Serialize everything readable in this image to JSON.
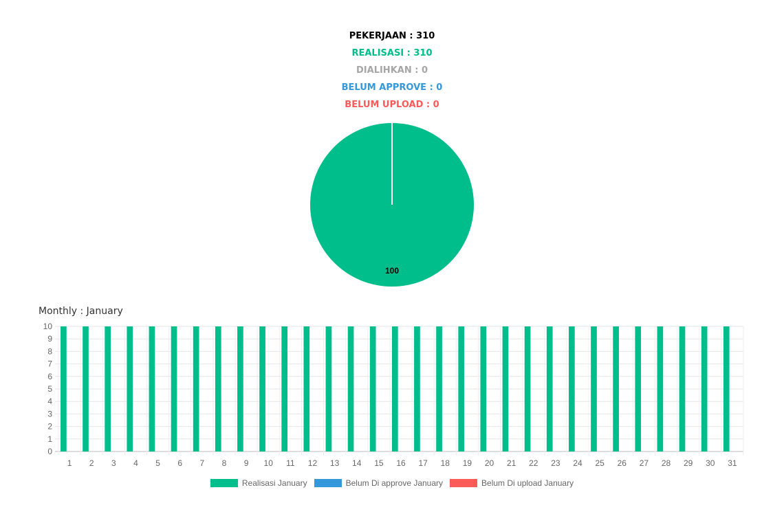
{
  "summary": {
    "pekerjaan": "PEKERJAAN : 310",
    "realisasi": "REALISASI : 310",
    "dialihkan": "DIALIHKAN : 0",
    "belum_approve": "BELUM APPROVE : 0",
    "belum_upload": "BELUM UPLOAD : 0"
  },
  "colors": {
    "black": "#000000",
    "green": "#00BD8C",
    "gray": "#A6A6A6",
    "blue": "#3498DB",
    "red": "#FF5A5A"
  },
  "monthly_title": "Monthly : January",
  "chart_data": [
    {
      "type": "pie",
      "slices": [
        {
          "name": "Realisasi",
          "value": 100,
          "label": "100",
          "color": "#00BD8C"
        },
        {
          "name": "Dialihkan",
          "value": 0,
          "color": "#A6A6A6"
        },
        {
          "name": "Belum approve",
          "value": 0,
          "color": "#3498DB"
        },
        {
          "name": "Belum upload",
          "value": 0,
          "color": "#FF5A5A"
        }
      ]
    },
    {
      "type": "bar",
      "categories": [
        "1",
        "2",
        "3",
        "4",
        "5",
        "6",
        "7",
        "8",
        "9",
        "10",
        "11",
        "12",
        "13",
        "14",
        "15",
        "16",
        "17",
        "18",
        "19",
        "20",
        "21",
        "22",
        "23",
        "24",
        "25",
        "26",
        "27",
        "28",
        "29",
        "30",
        "31"
      ],
      "series": [
        {
          "name": "Realisasi January",
          "color": "#00BD8C",
          "values": [
            10,
            10,
            10,
            10,
            10,
            10,
            10,
            10,
            10,
            10,
            10,
            10,
            10,
            10,
            10,
            10,
            10,
            10,
            10,
            10,
            10,
            10,
            10,
            10,
            10,
            10,
            10,
            10,
            10,
            10,
            10
          ]
        },
        {
          "name": "Belum Di approve January",
          "color": "#3498DB",
          "values": [
            0,
            0,
            0,
            0,
            0,
            0,
            0,
            0,
            0,
            0,
            0,
            0,
            0,
            0,
            0,
            0,
            0,
            0,
            0,
            0,
            0,
            0,
            0,
            0,
            0,
            0,
            0,
            0,
            0,
            0,
            0
          ]
        },
        {
          "name": "Belum Di upload January",
          "color": "#FF5A5A",
          "values": [
            0,
            0,
            0,
            0,
            0,
            0,
            0,
            0,
            0,
            0,
            0,
            0,
            0,
            0,
            0,
            0,
            0,
            0,
            0,
            0,
            0,
            0,
            0,
            0,
            0,
            0,
            0,
            0,
            0,
            0,
            0
          ]
        }
      ],
      "title": "",
      "xlabel": "",
      "ylabel": "",
      "ylim": [
        0,
        10
      ],
      "yticks": [
        "0",
        "1",
        "2",
        "3",
        "4",
        "5",
        "6",
        "7",
        "8",
        "9",
        "10"
      ],
      "grid": true,
      "legend": "bottom"
    }
  ]
}
